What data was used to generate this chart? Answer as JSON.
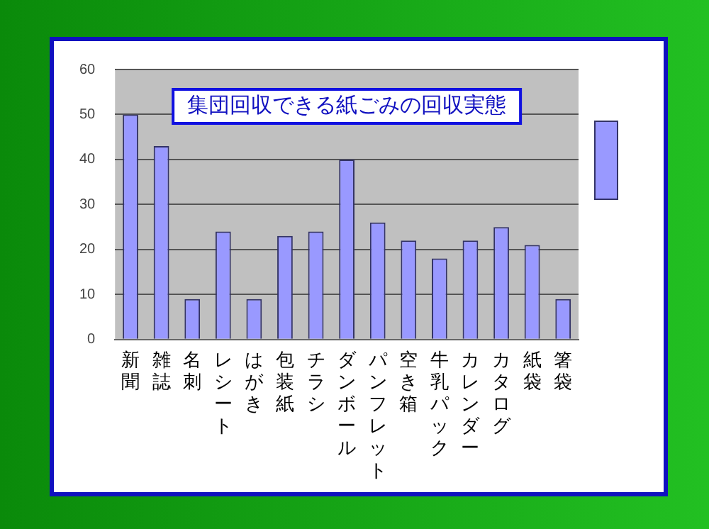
{
  "chart_data": {
    "type": "bar",
    "title": "集団回収できる紙ごみの回収実態",
    "categories": [
      "新聞",
      "雑誌",
      "名刺",
      "レシート",
      "はがき",
      "包装紙",
      "チラシ",
      "ダンボール",
      "パンフレット",
      "空き箱",
      "牛乳パック",
      "カレンダー",
      "カタログ",
      "紙袋",
      "箸袋"
    ],
    "series": [
      {
        "color": "#9999ff",
        "values": [
          50,
          43,
          9,
          24,
          9,
          23,
          24,
          40,
          26,
          22,
          18,
          22,
          25,
          21,
          9
        ]
      }
    ],
    "ylim": [
      0,
      60
    ],
    "yticks": [
      0,
      10,
      20,
      30,
      40,
      50,
      60
    ],
    "grid": "y"
  }
}
